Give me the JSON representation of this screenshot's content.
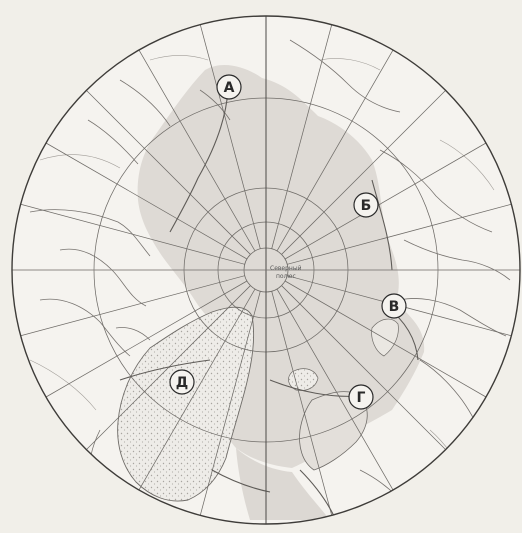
{
  "map": {
    "pole_label": [
      "Северный",
      "полюс"
    ],
    "labels": [
      {
        "id": "label-a",
        "text": "А"
      },
      {
        "id": "label-b",
        "text": "Б"
      },
      {
        "id": "label-v",
        "text": "В"
      },
      {
        "id": "label-g",
        "text": "Г"
      },
      {
        "id": "label-d",
        "text": "Д"
      }
    ],
    "colors": {
      "background": "#f1efe9",
      "land": "#f4f2ee",
      "ocean_shading": "#dcd8d3",
      "ice_stipple": "#b9b5b0",
      "lines": "#6f6c68",
      "border": "#3e3c39"
    }
  }
}
